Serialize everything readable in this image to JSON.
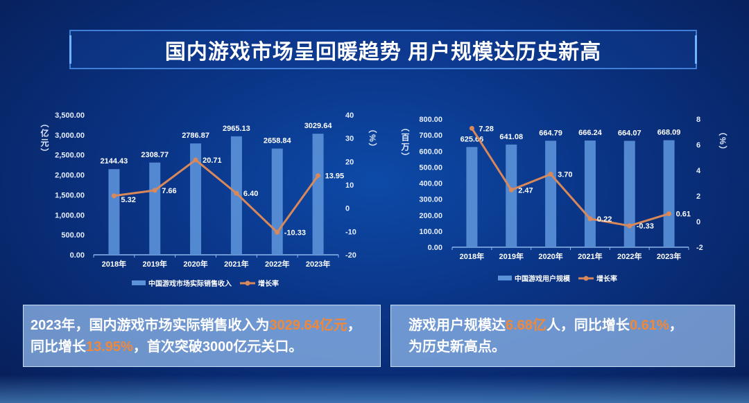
{
  "title": "国内游戏市场呈回暖趋势 用户规模达历史新高",
  "colors": {
    "bar": "#5b92d8",
    "line": "#d9885a",
    "highlight": "#f0883a"
  },
  "chart_data": [
    {
      "type": "bar+line",
      "categories": [
        "2018年",
        "2019年",
        "2020年",
        "2021年",
        "2022年",
        "2023年"
      ],
      "ylabel": "（亿元）",
      "y2label": "（%）",
      "ylim": [
        0,
        3500
      ],
      "y2lim": [
        -20,
        40
      ],
      "yticks": [
        "0.00",
        "500.00",
        "1,000.00",
        "1,500.00",
        "2,000.00",
        "2,500.00",
        "3,000.00",
        "3,500.00"
      ],
      "y2ticks": [
        "-20",
        "-10",
        "0",
        "10",
        "20",
        "30",
        "40"
      ],
      "series": [
        {
          "name": "中国游戏市场实际销售收入",
          "type": "bar",
          "values": [
            2144.43,
            2308.77,
            2786.87,
            2965.13,
            2658.84,
            3029.64
          ],
          "labels": [
            "2144.43",
            "2308.77",
            "2786.87",
            "2965.13",
            "2658.84",
            "3029.64"
          ]
        },
        {
          "name": "增长率",
          "type": "line",
          "axis": "right",
          "values": [
            5.32,
            7.66,
            20.71,
            6.4,
            -10.33,
            13.95
          ],
          "labels": [
            "5.32",
            "7.66",
            "20.71",
            "6.40",
            "-10.33",
            "13.95"
          ]
        }
      ],
      "legend": "bottom"
    },
    {
      "type": "bar+line",
      "categories": [
        "2018年",
        "2019年",
        "2020年",
        "2021年",
        "2022年",
        "2023年"
      ],
      "ylabel": "（百万）",
      "y2label": "（%）",
      "ylim": [
        0,
        800
      ],
      "y2lim": [
        -2,
        8
      ],
      "yticks": [
        "0.00",
        "100.00",
        "200.00",
        "300.00",
        "400.00",
        "500.00",
        "600.00",
        "700.00",
        "800.00"
      ],
      "y2ticks": [
        "-2",
        "0",
        "2",
        "4",
        "6",
        "8"
      ],
      "series": [
        {
          "name": "中国游戏用户规模",
          "type": "bar",
          "values": [
            625.66,
            641.08,
            664.79,
            666.24,
            664.07,
            668.09
          ],
          "labels": [
            "625.66",
            "641.08",
            "664.79",
            "666.24",
            "664.07",
            "668.09"
          ]
        },
        {
          "name": "增长率",
          "type": "line",
          "axis": "right",
          "values": [
            7.28,
            2.47,
            3.7,
            0.22,
            -0.33,
            0.61
          ],
          "labels": [
            "7.28",
            "2.47",
            "3.70",
            "0.22",
            "-0.33",
            "0.61"
          ]
        }
      ],
      "legend": "bottom"
    }
  ],
  "summary_left": {
    "p1": "2023年，国内游戏市场实际销售收入为",
    "h1": "3029.64亿元",
    "p2": "，",
    "p3": "同比增长",
    "h2": "13.95%",
    "p4": "，首次突破3000亿元关口。"
  },
  "summary_right": {
    "p1": "游戏用户规模达",
    "h1": "6.68亿",
    "p2": "人，同比增长",
    "h2": "0.61%",
    "p3": "，",
    "p4": "为历史新高点。"
  }
}
